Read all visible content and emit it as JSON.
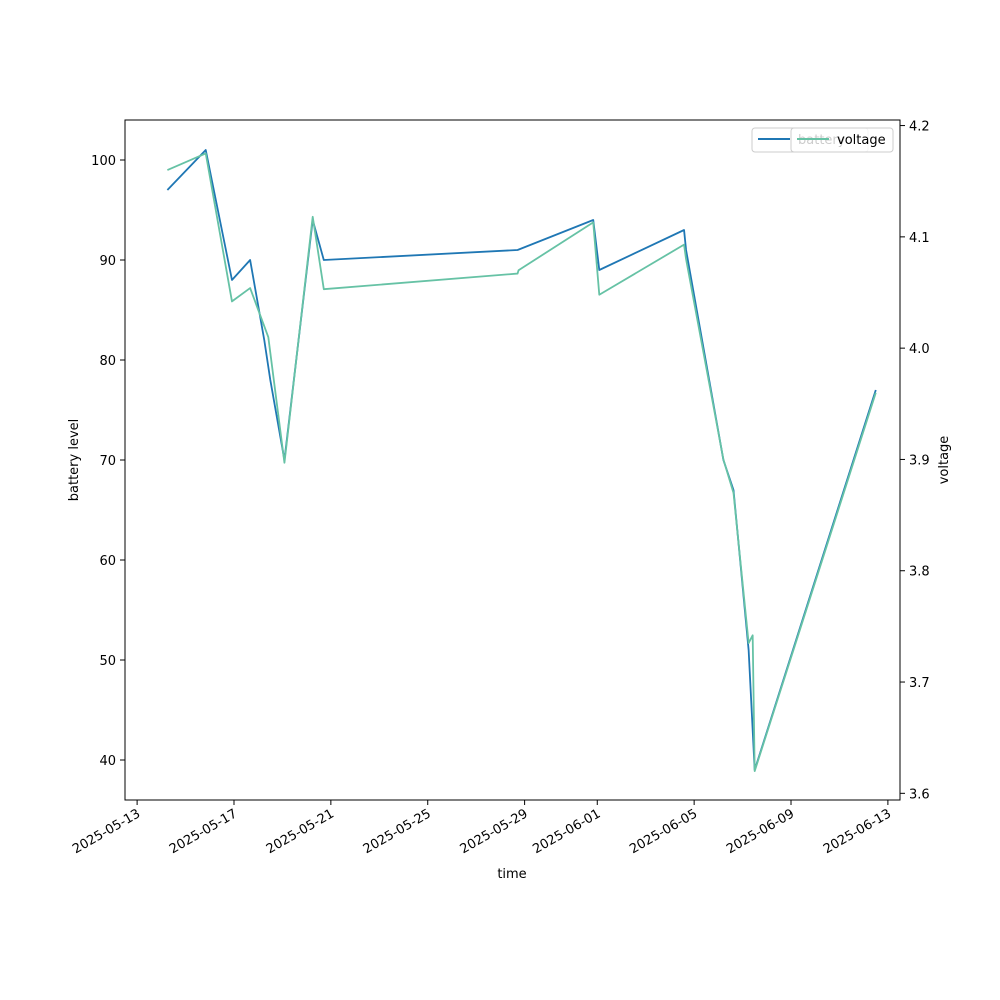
{
  "chart_data": {
    "type": "line",
    "xlabel": "time",
    "ylabel_left": "battery level",
    "ylabel_right": "voltage",
    "x_range": [
      "2025-05-12T12:00",
      "2025-06-13T12:00"
    ],
    "ylim_left": [
      36,
      104
    ],
    "ylim_right": [
      3.594,
      4.205
    ],
    "x_ticks": [
      "2025-05-13",
      "2025-05-17",
      "2025-05-21",
      "2025-05-25",
      "2025-05-29",
      "2025-06-01",
      "2025-06-05",
      "2025-06-09",
      "2025-06-13"
    ],
    "y_ticks_left": [
      40,
      50,
      60,
      70,
      80,
      90,
      100
    ],
    "y_ticks_right": [
      3.6,
      3.7,
      3.8,
      3.9,
      4.0,
      4.1,
      4.2
    ],
    "grid": false,
    "legend_position": "top-right",
    "series": [
      {
        "name": "battery",
        "axis": "left",
        "color": "#1f77b4",
        "points": [
          [
            "2025-05-14T06:00",
            97
          ],
          [
            "2025-05-15T20:00",
            101
          ],
          [
            "2025-05-16T22:00",
            88
          ],
          [
            "2025-05-17T16:00",
            90
          ],
          [
            "2025-05-18T06:00",
            82
          ],
          [
            "2025-05-18T12:00",
            78
          ],
          [
            "2025-05-19T02:00",
            70
          ],
          [
            "2025-05-20T06:00",
            94
          ],
          [
            "2025-05-20T17:00",
            90
          ],
          [
            "2025-05-28T17:00",
            91
          ],
          [
            "2025-05-31T20:00",
            94
          ],
          [
            "2025-06-01T02:00",
            89
          ],
          [
            "2025-06-04T14:00",
            93
          ],
          [
            "2025-06-04T16:00",
            91
          ],
          [
            "2025-06-06T05:00",
            70
          ],
          [
            "2025-06-06T15:00",
            67
          ],
          [
            "2025-06-07T06:00",
            51
          ],
          [
            "2025-06-07T12:00",
            39
          ],
          [
            "2025-06-12T12:00",
            77
          ]
        ]
      },
      {
        "name": "voltage",
        "axis": "right",
        "color": "#66c2a5",
        "points": [
          [
            "2025-05-14T06:00",
            4.16
          ],
          [
            "2025-05-15T20:00",
            4.175
          ],
          [
            "2025-05-16T22:00",
            4.042
          ],
          [
            "2025-05-17T16:00",
            4.054
          ],
          [
            "2025-05-18T10:00",
            4.01
          ],
          [
            "2025-05-19T02:00",
            3.897
          ],
          [
            "2025-05-20T06:00",
            4.118
          ],
          [
            "2025-05-20T17:00",
            4.053
          ],
          [
            "2025-05-28T17:00",
            4.067
          ],
          [
            "2025-05-28T18:00",
            4.07
          ],
          [
            "2025-05-31T20:00",
            4.113
          ],
          [
            "2025-06-01T02:00",
            4.048
          ],
          [
            "2025-06-04T14:00",
            4.093
          ],
          [
            "2025-06-04T16:00",
            4.08
          ],
          [
            "2025-06-06T05:00",
            3.9
          ],
          [
            "2025-06-06T15:00",
            3.87
          ],
          [
            "2025-06-07T06:00",
            3.735
          ],
          [
            "2025-06-07T10:00",
            3.742
          ],
          [
            "2025-06-07T12:00",
            3.62
          ],
          [
            "2025-06-12T12:00",
            3.96
          ]
        ]
      }
    ]
  },
  "legends": {
    "left": {
      "label": "battery",
      "color": "#1f77b4"
    },
    "right": {
      "label": "voltage",
      "color": "#66c2a5"
    }
  }
}
